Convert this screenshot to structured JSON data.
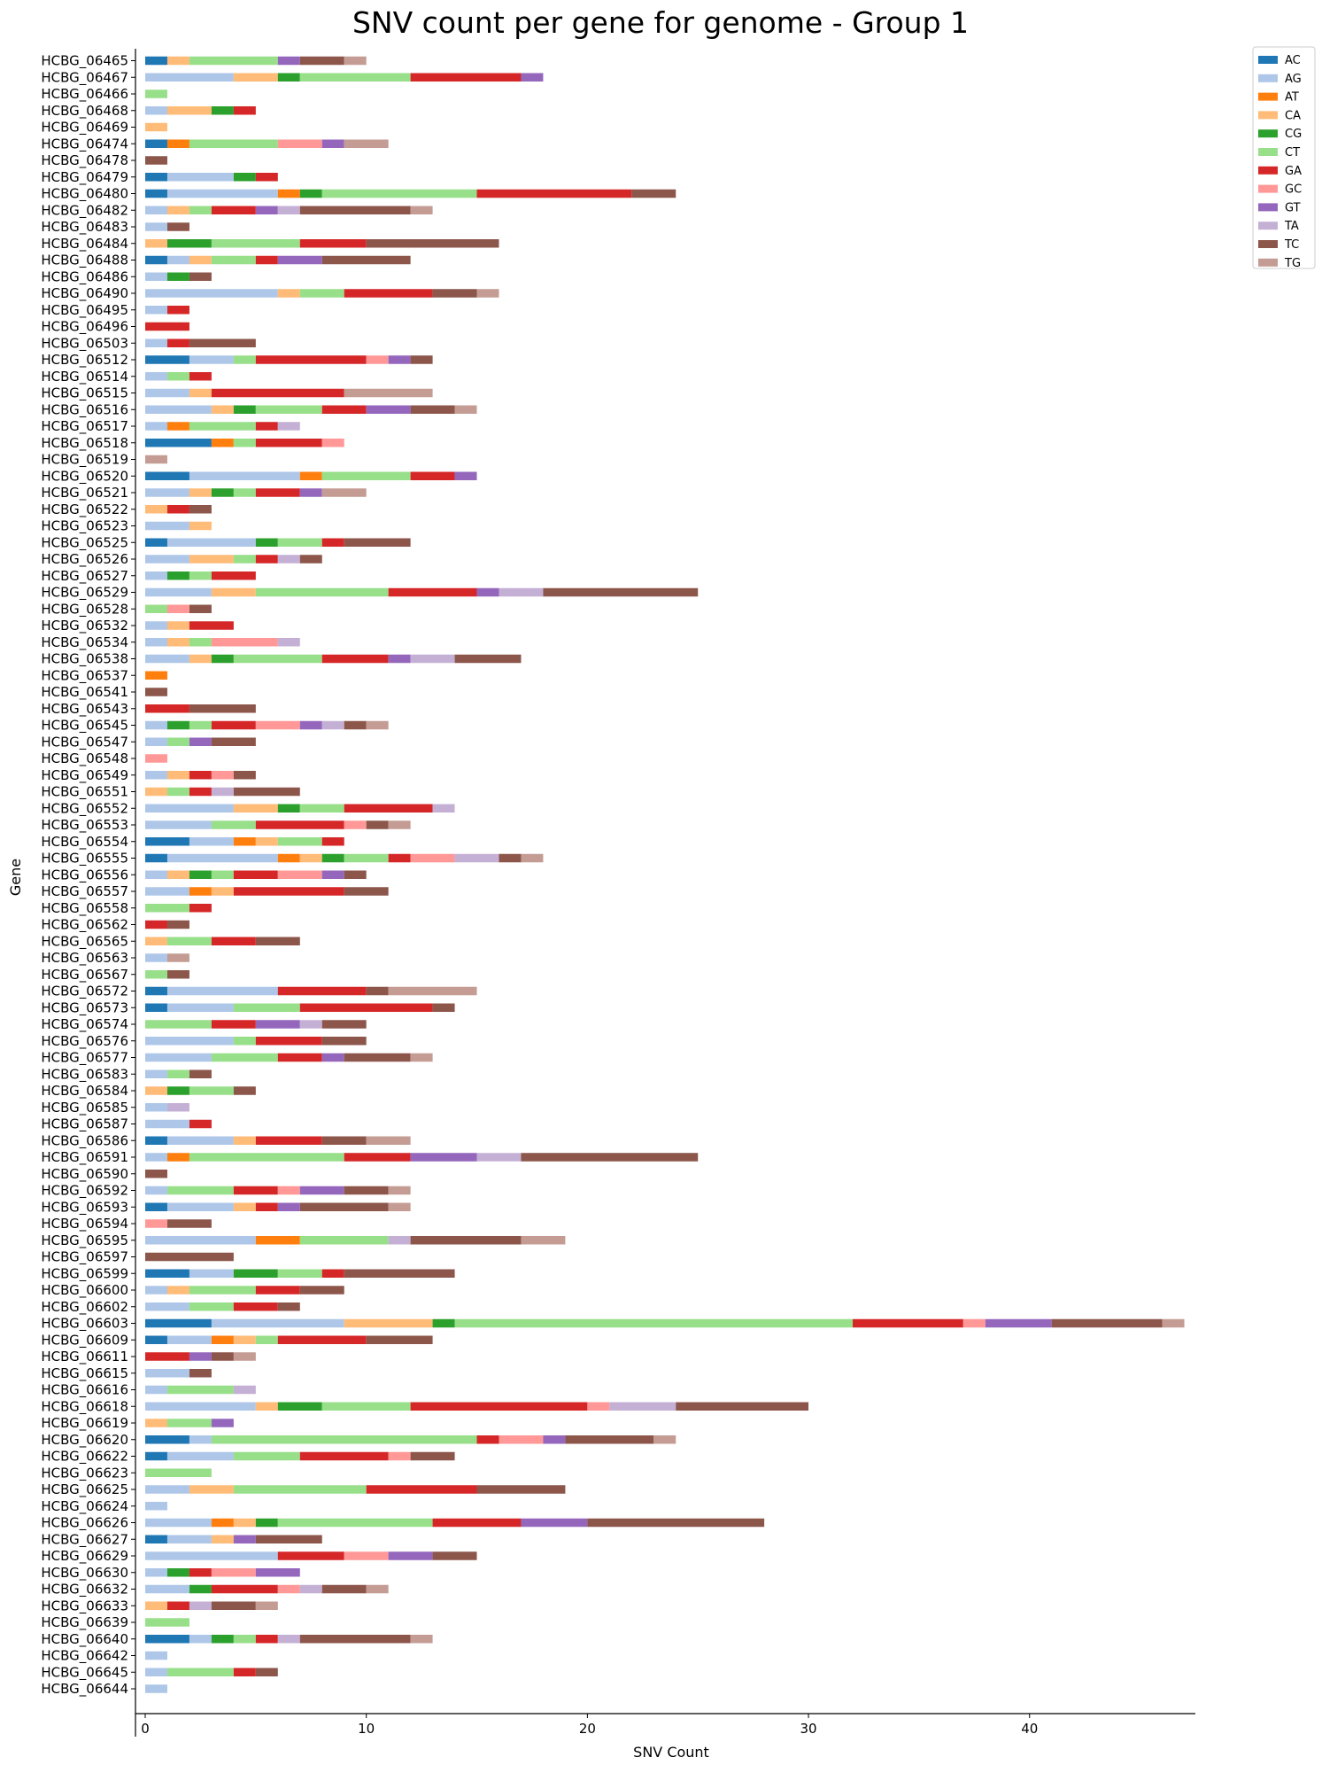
{
  "chart_data": {
    "type": "bar",
    "orientation": "horizontal",
    "stacked": true,
    "title": "SNV count per gene for genome - Group 1",
    "xlabel": "SNV Count",
    "ylabel": "Gene",
    "xlim": [
      0,
      47.5
    ],
    "xticks": [
      "0",
      "10",
      "20",
      "30",
      "40"
    ],
    "grid": false,
    "legend_position": "top-right",
    "categories": [
      "HCBG_06465",
      "HCBG_06467",
      "HCBG_06466",
      "HCBG_06468",
      "HCBG_06469",
      "HCBG_06474",
      "HCBG_06478",
      "HCBG_06479",
      "HCBG_06480",
      "HCBG_06482",
      "HCBG_06483",
      "HCBG_06484",
      "HCBG_06488",
      "HCBG_06486",
      "HCBG_06490",
      "HCBG_06495",
      "HCBG_06496",
      "HCBG_06503",
      "HCBG_06512",
      "HCBG_06514",
      "HCBG_06515",
      "HCBG_06516",
      "HCBG_06517",
      "HCBG_06518",
      "HCBG_06519",
      "HCBG_06520",
      "HCBG_06521",
      "HCBG_06522",
      "HCBG_06523",
      "HCBG_06525",
      "HCBG_06526",
      "HCBG_06527",
      "HCBG_06529",
      "HCBG_06528",
      "HCBG_06532",
      "HCBG_06534",
      "HCBG_06538",
      "HCBG_06537",
      "HCBG_06541",
      "HCBG_06543",
      "HCBG_06545",
      "HCBG_06547",
      "HCBG_06548",
      "HCBG_06549",
      "HCBG_06551",
      "HCBG_06552",
      "HCBG_06553",
      "HCBG_06554",
      "HCBG_06555",
      "HCBG_06556",
      "HCBG_06557",
      "HCBG_06558",
      "HCBG_06562",
      "HCBG_06565",
      "HCBG_06563",
      "HCBG_06567",
      "HCBG_06572",
      "HCBG_06573",
      "HCBG_06574",
      "HCBG_06576",
      "HCBG_06577",
      "HCBG_06583",
      "HCBG_06584",
      "HCBG_06585",
      "HCBG_06587",
      "HCBG_06586",
      "HCBG_06591",
      "HCBG_06590",
      "HCBG_06592",
      "HCBG_06593",
      "HCBG_06594",
      "HCBG_06595",
      "HCBG_06597",
      "HCBG_06599",
      "HCBG_06600",
      "HCBG_06602",
      "HCBG_06603",
      "HCBG_06609",
      "HCBG_06611",
      "HCBG_06615",
      "HCBG_06616",
      "HCBG_06618",
      "HCBG_06619",
      "HCBG_06620",
      "HCBG_06622",
      "HCBG_06623",
      "HCBG_06625",
      "HCBG_06624",
      "HCBG_06626",
      "HCBG_06627",
      "HCBG_06629",
      "HCBG_06630",
      "HCBG_06632",
      "HCBG_06633",
      "HCBG_06639",
      "HCBG_06640",
      "HCBG_06642",
      "HCBG_06645",
      "HCBG_06644"
    ],
    "series": [
      {
        "name": "AC",
        "color": "#1f77b4",
        "values": [
          1,
          0,
          0,
          0,
          0,
          1,
          0,
          1,
          1,
          0,
          0,
          0,
          1,
          0,
          0,
          0,
          0,
          0,
          2,
          0,
          0,
          0,
          0,
          3,
          0,
          2,
          0,
          0,
          0,
          1,
          0,
          0,
          0,
          0,
          0,
          0,
          0,
          0,
          0,
          0,
          0,
          0,
          0,
          0,
          0,
          0,
          0,
          2,
          1,
          0,
          0,
          0,
          0,
          0,
          0,
          0,
          1,
          1,
          0,
          0,
          0,
          0,
          0,
          0,
          0,
          1,
          0,
          0,
          0,
          1,
          0,
          0,
          0,
          2,
          0,
          0,
          3,
          1,
          0,
          0,
          0,
          0,
          0,
          2,
          1,
          0,
          0,
          0,
          0,
          1,
          0,
          0,
          0,
          0,
          0,
          2,
          0,
          0,
          0
        ]
      },
      {
        "name": "AG",
        "color": "#aec7e8",
        "values": [
          0,
          4,
          0,
          1,
          0,
          0,
          0,
          3,
          5,
          1,
          1,
          0,
          1,
          1,
          6,
          1,
          0,
          1,
          2,
          1,
          2,
          3,
          1,
          0,
          0,
          5,
          2,
          0,
          2,
          4,
          2,
          1,
          3,
          0,
          1,
          1,
          2,
          0,
          0,
          0,
          1,
          1,
          0,
          1,
          0,
          4,
          3,
          2,
          5,
          1,
          2,
          0,
          0,
          0,
          1,
          0,
          5,
          3,
          0,
          4,
          3,
          1,
          0,
          1,
          2,
          3,
          1,
          0,
          1,
          3,
          0,
          5,
          0,
          2,
          1,
          2,
          6,
          2,
          0,
          2,
          1,
          5,
          0,
          1,
          3,
          0,
          2,
          1,
          3,
          2,
          6,
          1,
          2,
          0,
          0,
          1,
          1,
          1,
          1
        ]
      },
      {
        "name": "AT",
        "color": "#ff7f0e",
        "values": [
          0,
          0,
          0,
          0,
          0,
          1,
          0,
          0,
          1,
          0,
          0,
          0,
          0,
          0,
          0,
          0,
          0,
          0,
          0,
          0,
          0,
          0,
          1,
          1,
          0,
          1,
          0,
          0,
          0,
          0,
          0,
          0,
          0,
          0,
          0,
          0,
          0,
          1,
          0,
          0,
          0,
          0,
          0,
          0,
          0,
          0,
          0,
          1,
          1,
          0,
          1,
          0,
          0,
          0,
          0,
          0,
          0,
          0,
          0,
          0,
          0,
          0,
          0,
          0,
          0,
          0,
          1,
          0,
          0,
          0,
          0,
          2,
          0,
          0,
          0,
          0,
          0,
          1,
          0,
          0,
          0,
          0,
          0,
          0,
          0,
          0,
          0,
          0,
          1,
          0,
          0,
          0,
          0,
          0,
          0,
          0,
          0,
          0,
          0
        ]
      },
      {
        "name": "CA",
        "color": "#ffbb78",
        "values": [
          1,
          2,
          0,
          2,
          1,
          0,
          0,
          0,
          0,
          1,
          0,
          1,
          1,
          0,
          1,
          0,
          0,
          0,
          0,
          0,
          1,
          1,
          0,
          0,
          0,
          0,
          1,
          1,
          1,
          0,
          2,
          0,
          2,
          0,
          1,
          1,
          1,
          0,
          0,
          0,
          0,
          0,
          0,
          1,
          1,
          2,
          0,
          1,
          1,
          1,
          1,
          0,
          0,
          1,
          0,
          0,
          0,
          0,
          0,
          0,
          0,
          0,
          1,
          0,
          0,
          1,
          0,
          0,
          0,
          1,
          0,
          0,
          0,
          0,
          1,
          0,
          4,
          1,
          0,
          0,
          0,
          1,
          1,
          0,
          0,
          0,
          2,
          0,
          1,
          1,
          0,
          0,
          0,
          1,
          0,
          0,
          0,
          0,
          0
        ]
      },
      {
        "name": "CG",
        "color": "#2ca02c",
        "values": [
          0,
          1,
          0,
          1,
          0,
          0,
          0,
          1,
          1,
          0,
          0,
          2,
          0,
          1,
          0,
          0,
          0,
          0,
          0,
          0,
          0,
          1,
          0,
          0,
          0,
          0,
          1,
          0,
          0,
          1,
          0,
          1,
          0,
          0,
          0,
          0,
          1,
          0,
          0,
          0,
          1,
          0,
          0,
          0,
          0,
          1,
          0,
          0,
          1,
          1,
          0,
          0,
          0,
          0,
          0,
          0,
          0,
          0,
          0,
          0,
          0,
          0,
          1,
          0,
          0,
          0,
          0,
          0,
          0,
          0,
          0,
          0,
          0,
          2,
          0,
          0,
          1,
          0,
          0,
          0,
          0,
          2,
          0,
          0,
          0,
          0,
          0,
          0,
          1,
          0,
          0,
          1,
          1,
          0,
          0,
          1,
          0,
          0,
          0
        ]
      },
      {
        "name": "CT",
        "color": "#98df8a",
        "values": [
          4,
          5,
          1,
          0,
          0,
          4,
          0,
          0,
          7,
          1,
          0,
          4,
          2,
          0,
          2,
          0,
          0,
          0,
          1,
          1,
          0,
          3,
          3,
          1,
          0,
          4,
          1,
          0,
          0,
          2,
          1,
          1,
          6,
          1,
          0,
          1,
          4,
          0,
          0,
          0,
          1,
          1,
          0,
          0,
          1,
          2,
          2,
          2,
          2,
          1,
          0,
          2,
          0,
          2,
          0,
          1,
          0,
          3,
          3,
          1,
          3,
          1,
          2,
          0,
          0,
          0,
          7,
          0,
          3,
          0,
          0,
          4,
          0,
          2,
          3,
          2,
          18,
          1,
          0,
          0,
          3,
          4,
          2,
          12,
          3,
          3,
          6,
          0,
          7,
          0,
          0,
          0,
          0,
          0,
          2,
          1,
          0,
          3,
          0
        ]
      },
      {
        "name": "GA",
        "color": "#d62728",
        "values": [
          0,
          5,
          0,
          1,
          0,
          0,
          0,
          1,
          7,
          2,
          0,
          3,
          1,
          0,
          4,
          1,
          2,
          1,
          5,
          1,
          6,
          2,
          1,
          3,
          0,
          2,
          2,
          1,
          0,
          1,
          1,
          2,
          4,
          0,
          2,
          0,
          3,
          0,
          0,
          2,
          2,
          0,
          0,
          1,
          1,
          4,
          4,
          1,
          1,
          2,
          5,
          1,
          1,
          2,
          0,
          0,
          4,
          6,
          2,
          3,
          2,
          0,
          0,
          0,
          1,
          3,
          3,
          0,
          2,
          1,
          0,
          0,
          0,
          1,
          2,
          2,
          5,
          4,
          2,
          0,
          0,
          8,
          0,
          1,
          4,
          0,
          5,
          0,
          4,
          0,
          3,
          1,
          3,
          1,
          0,
          1,
          0,
          1,
          0
        ]
      },
      {
        "name": "GC",
        "color": "#ff9896",
        "values": [
          0,
          0,
          0,
          0,
          0,
          2,
          0,
          0,
          0,
          0,
          0,
          0,
          0,
          0,
          0,
          0,
          0,
          0,
          1,
          0,
          0,
          0,
          0,
          1,
          0,
          0,
          0,
          0,
          0,
          0,
          0,
          0,
          0,
          1,
          0,
          3,
          0,
          0,
          0,
          0,
          2,
          0,
          1,
          1,
          0,
          0,
          1,
          0,
          2,
          2,
          0,
          0,
          0,
          0,
          0,
          0,
          0,
          0,
          0,
          0,
          0,
          0,
          0,
          0,
          0,
          0,
          0,
          0,
          1,
          0,
          1,
          0,
          0,
          0,
          0,
          0,
          1,
          0,
          0,
          0,
          0,
          1,
          0,
          2,
          1,
          0,
          0,
          0,
          0,
          0,
          2,
          2,
          1,
          0,
          0,
          0,
          0,
          0,
          0
        ]
      },
      {
        "name": "GT",
        "color": "#9467bd",
        "values": [
          1,
          1,
          0,
          0,
          0,
          1,
          0,
          0,
          0,
          1,
          0,
          0,
          2,
          0,
          0,
          0,
          0,
          0,
          1,
          0,
          0,
          2,
          0,
          0,
          0,
          1,
          1,
          0,
          0,
          0,
          0,
          0,
          1,
          0,
          0,
          0,
          1,
          0,
          0,
          0,
          1,
          1,
          0,
          0,
          0,
          0,
          0,
          0,
          0,
          1,
          0,
          0,
          0,
          0,
          0,
          0,
          0,
          0,
          2,
          0,
          1,
          0,
          0,
          0,
          0,
          0,
          3,
          0,
          2,
          1,
          0,
          0,
          0,
          0,
          0,
          0,
          3,
          0,
          1,
          0,
          0,
          0,
          1,
          1,
          0,
          0,
          0,
          0,
          3,
          1,
          2,
          2,
          0,
          0,
          0,
          0,
          0,
          0,
          0
        ]
      },
      {
        "name": "TA",
        "color": "#c5b0d5",
        "values": [
          0,
          0,
          0,
          0,
          0,
          0,
          0,
          0,
          0,
          1,
          0,
          0,
          0,
          0,
          0,
          0,
          0,
          0,
          0,
          0,
          0,
          0,
          1,
          0,
          0,
          0,
          0,
          0,
          0,
          0,
          1,
          0,
          2,
          0,
          0,
          1,
          2,
          0,
          0,
          0,
          1,
          0,
          0,
          0,
          1,
          1,
          0,
          0,
          2,
          0,
          0,
          0,
          0,
          0,
          0,
          0,
          0,
          0,
          1,
          0,
          0,
          0,
          0,
          1,
          0,
          0,
          2,
          0,
          0,
          0,
          0,
          1,
          0,
          0,
          0,
          0,
          0,
          0,
          0,
          0,
          1,
          3,
          0,
          0,
          0,
          0,
          0,
          0,
          0,
          0,
          0,
          0,
          1,
          1,
          0,
          1,
          0,
          0,
          0
        ]
      },
      {
        "name": "TC",
        "color": "#8c564b",
        "values": [
          2,
          0,
          0,
          0,
          0,
          0,
          1,
          0,
          2,
          5,
          1,
          6,
          4,
          1,
          2,
          0,
          0,
          3,
          1,
          0,
          0,
          2,
          0,
          0,
          0,
          0,
          0,
          1,
          0,
          3,
          1,
          0,
          7,
          1,
          0,
          0,
          3,
          0,
          1,
          3,
          1,
          2,
          0,
          1,
          3,
          0,
          1,
          0,
          1,
          1,
          2,
          0,
          1,
          2,
          0,
          1,
          1,
          1,
          2,
          2,
          3,
          1,
          1,
          0,
          0,
          2,
          8,
          1,
          2,
          4,
          2,
          5,
          4,
          5,
          2,
          1,
          5,
          3,
          1,
          1,
          0,
          6,
          0,
          4,
          2,
          0,
          4,
          0,
          8,
          3,
          2,
          0,
          2,
          2,
          0,
          5,
          0,
          1,
          0
        ]
      },
      {
        "name": "TG",
        "color": "#c49c94",
        "values": [
          1,
          0,
          0,
          0,
          0,
          2,
          0,
          0,
          0,
          1,
          0,
          0,
          0,
          0,
          1,
          0,
          0,
          0,
          0,
          0,
          4,
          1,
          0,
          0,
          1,
          0,
          2,
          0,
          0,
          0,
          0,
          0,
          0,
          0,
          0,
          0,
          0,
          0,
          0,
          0,
          1,
          0,
          0,
          0,
          0,
          0,
          1,
          0,
          1,
          0,
          0,
          0,
          0,
          0,
          1,
          0,
          4,
          0,
          0,
          0,
          1,
          0,
          0,
          0,
          0,
          2,
          0,
          0,
          1,
          1,
          0,
          2,
          0,
          0,
          0,
          0,
          1,
          0,
          1,
          0,
          0,
          0,
          0,
          1,
          0,
          0,
          0,
          0,
          0,
          0,
          0,
          0,
          1,
          1,
          0,
          1,
          0,
          0,
          0
        ]
      }
    ]
  }
}
